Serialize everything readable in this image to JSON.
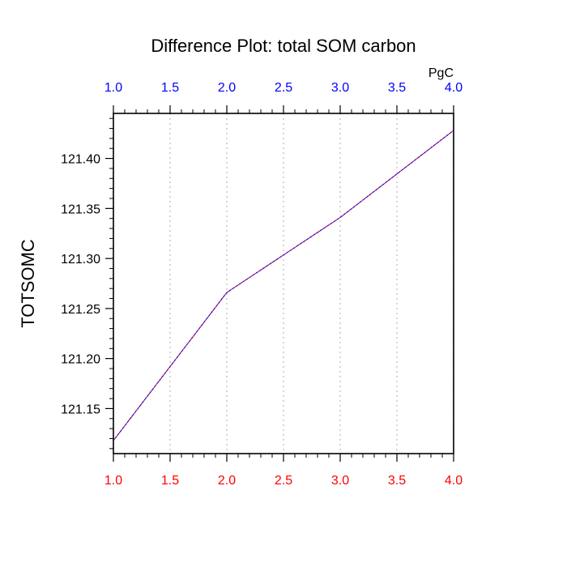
{
  "chart_data": {
    "type": "line",
    "title": "Difference Plot: total SOM carbon",
    "units": "PgC",
    "ylabel": "TOTSOMC",
    "xlabel": "",
    "x": [
      1.0,
      2.0,
      3.0,
      4.0
    ],
    "series": [
      {
        "values": [
          121.118,
          121.266,
          121.341,
          121.428
        ]
      }
    ],
    "xlim": [
      1.0,
      4.0
    ],
    "ylim": [
      121.105,
      121.445
    ],
    "x_ticks": [
      "1.0",
      "1.5",
      "2.0",
      "2.5",
      "3.0",
      "3.5",
      "4.0"
    ],
    "y_ticks": [
      "121.15",
      "121.20",
      "121.25",
      "121.30",
      "121.35",
      "121.40"
    ],
    "grid": "vertical dotted",
    "colors": {
      "top_ticks": "#0000ff",
      "bottom_ticks": "#ff0000",
      "line": "#800080",
      "grid": "#bbbbbb"
    }
  }
}
